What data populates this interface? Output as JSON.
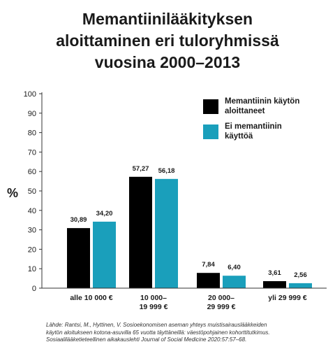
{
  "title_lines": [
    "Memantiinilääkityksen",
    "aloittaminen eri tuloryhmissä",
    "vuosina 2000–2013"
  ],
  "source_lines": [
    "Lähde: Rantsi, M., Hyttinen, V. Sosioekonomisen aseman yhteys muistisairauslääkkeiden",
    "käytön aloitukseen kotona-asuvilla 65 vuotta täyttäneillä: väestöpohjainen kohorttitutkimus.",
    "Sosiaalilääketieteellinen aikakauslehti Journal of Social Medicine 2020:57:57–68."
  ],
  "chart_data": {
    "type": "bar",
    "title": "Memantiinilääkityksen aloittaminen eri tuloryhmissä vuosina 2000–2013",
    "ylabel": "%",
    "xlabel": "",
    "ylim": [
      0,
      100
    ],
    "yticks": [
      0,
      10,
      20,
      30,
      40,
      50,
      60,
      70,
      80,
      90,
      100
    ],
    "grid": false,
    "legend_position": "top-right",
    "categories": [
      [
        "alle 10 000 €"
      ],
      [
        "10 000–",
        "19 999 €"
      ],
      [
        "20 000–",
        "29 999 €"
      ],
      [
        "yli 29 999 €"
      ]
    ],
    "series": [
      {
        "name": "Memantiinin käytön aloittaneet",
        "legend_lines": [
          "Memantiinin käytön",
          "aloittaneet"
        ],
        "color": "#000000",
        "values": [
          30.89,
          57.27,
          7.84,
          3.61
        ],
        "labels": [
          "30,89",
          "57,27",
          "7,84",
          "3,61"
        ]
      },
      {
        "name": "Ei memantiinin käyttöä",
        "legend_lines": [
          "Ei  memantiinin",
          "käyttöä"
        ],
        "color": "#1a9fbb",
        "values": [
          34.2,
          56.18,
          6.4,
          2.56
        ],
        "labels": [
          "34,20",
          "56,18",
          "6,40",
          "2,56"
        ]
      }
    ]
  }
}
